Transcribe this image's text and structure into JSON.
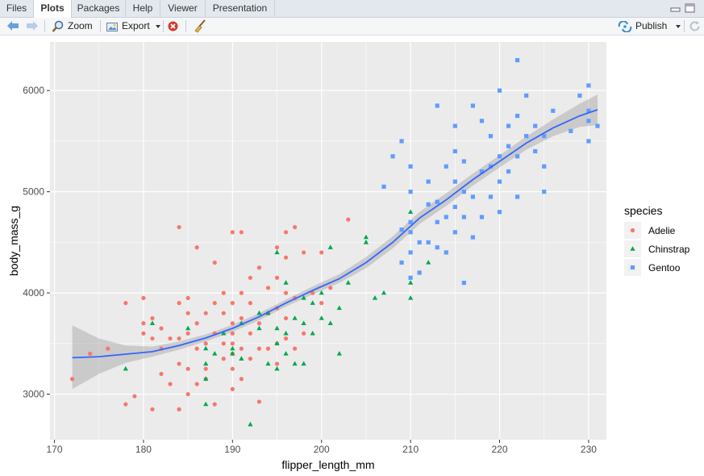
{
  "tabs": [
    {
      "label": "Files"
    },
    {
      "label": "Plots"
    },
    {
      "label": "Packages"
    },
    {
      "label": "Help"
    },
    {
      "label": "Viewer"
    },
    {
      "label": "Presentation"
    }
  ],
  "toolbar": {
    "zoom_label": "Zoom",
    "export_label": "Export",
    "publish_label": "Publish"
  },
  "colors": {
    "adelie": "#F8766D",
    "chinstrap": "#00A84F",
    "gentoo": "#619CFF",
    "smooth": "#3366FF",
    "panel": "#EBEBEB"
  },
  "chart_data": {
    "type": "scatter",
    "xlabel": "flipper_length_mm",
    "ylabel": "body_mass_g",
    "xlim": [
      169.5,
      232
    ],
    "ylim": [
      2550,
      6480
    ],
    "xticks": [
      "170",
      "180",
      "190",
      "200",
      "210",
      "220",
      "230"
    ],
    "yticks": [
      "3000",
      "4000",
      "5000",
      "6000"
    ],
    "legend": {
      "title": "species",
      "position": "right",
      "entries": [
        "Adelie",
        "Chinstrap",
        "Gentoo"
      ]
    },
    "series": [
      {
        "name": "Adelie",
        "shape": "circle",
        "points": [
          [
            172,
            3150
          ],
          [
            174,
            3400
          ],
          [
            176,
            3450
          ],
          [
            178,
            3900
          ],
          [
            178,
            2900
          ],
          [
            179,
            2980
          ],
          [
            180,
            3600
          ],
          [
            180,
            3700
          ],
          [
            180,
            3950
          ],
          [
            181,
            3550
          ],
          [
            181,
            3750
          ],
          [
            181,
            2850
          ],
          [
            182,
            3200
          ],
          [
            182,
            3450
          ],
          [
            182,
            3650
          ],
          [
            183,
            3550
          ],
          [
            183,
            3100
          ],
          [
            184,
            3550
          ],
          [
            184,
            3300
          ],
          [
            184,
            3900
          ],
          [
            184,
            4650
          ],
          [
            184,
            2850
          ],
          [
            185,
            3600
          ],
          [
            185,
            3800
          ],
          [
            185,
            3950
          ],
          [
            185,
            3000
          ],
          [
            185,
            3250
          ],
          [
            186,
            3450
          ],
          [
            186,
            3100
          ],
          [
            186,
            4450
          ],
          [
            186,
            3700
          ],
          [
            187,
            3500
          ],
          [
            187,
            3800
          ],
          [
            187,
            3150
          ],
          [
            187,
            3250
          ],
          [
            188,
            3600
          ],
          [
            188,
            3900
          ],
          [
            188,
            4300
          ],
          [
            188,
            2900
          ],
          [
            189,
            3350
          ],
          [
            189,
            3500
          ],
          [
            189,
            3800
          ],
          [
            189,
            4000
          ],
          [
            190,
            3400
          ],
          [
            190,
            3500
          ],
          [
            190,
            3600
          ],
          [
            190,
            3700
          ],
          [
            190,
            3900
          ],
          [
            190,
            4600
          ],
          [
            190,
            3050
          ],
          [
            190,
            3250
          ],
          [
            191,
            3450
          ],
          [
            191,
            3750
          ],
          [
            191,
            4000
          ],
          [
            191,
            4600
          ],
          [
            191,
            3150
          ],
          [
            192,
            3350
          ],
          [
            192,
            3600
          ],
          [
            192,
            3900
          ],
          [
            192,
            4150
          ],
          [
            193,
            3450
          ],
          [
            193,
            3700
          ],
          [
            193,
            4250
          ],
          [
            193,
            2925
          ],
          [
            194,
            3450
          ],
          [
            194,
            3800
          ],
          [
            194,
            4050
          ],
          [
            195,
            3500
          ],
          [
            195,
            3850
          ],
          [
            195,
            4150
          ],
          [
            195,
            4450
          ],
          [
            195,
            3300
          ],
          [
            196,
            3550
          ],
          [
            196,
            3750
          ],
          [
            196,
            4000
          ],
          [
            196,
            4350
          ],
          [
            196,
            4600
          ],
          [
            197,
            3450
          ],
          [
            197,
            3950
          ],
          [
            197,
            4650
          ],
          [
            198,
            3600
          ],
          [
            198,
            4400
          ],
          [
            199,
            4000
          ],
          [
            200,
            3900
          ],
          [
            200,
            4400
          ],
          [
            201,
            4050
          ],
          [
            203,
            4725
          ]
        ]
      },
      {
        "name": "Chinstrap",
        "shape": "triangle",
        "points": [
          [
            178,
            3250
          ],
          [
            181,
            3700
          ],
          [
            185,
            3650
          ],
          [
            187,
            2900
          ],
          [
            187,
            3300
          ],
          [
            187,
            3450
          ],
          [
            187,
            3150
          ],
          [
            188,
            3400
          ],
          [
            189,
            3600
          ],
          [
            190,
            3450
          ],
          [
            190,
            3400
          ],
          [
            191,
            3700
          ],
          [
            191,
            3350
          ],
          [
            192,
            2700
          ],
          [
            193,
            3800
          ],
          [
            193,
            3650
          ],
          [
            194,
            3800
          ],
          [
            194,
            3300
          ],
          [
            195,
            3650
          ],
          [
            195,
            3500
          ],
          [
            195,
            4400
          ],
          [
            195,
            3250
          ],
          [
            196,
            3600
          ],
          [
            196,
            4100
          ],
          [
            196,
            3400
          ],
          [
            197,
            3750
          ],
          [
            197,
            3300
          ],
          [
            198,
            3950
          ],
          [
            198,
            3700
          ],
          [
            198,
            3300
          ],
          [
            199,
            3900
          ],
          [
            199,
            3600
          ],
          [
            200,
            3750
          ],
          [
            200,
            4000
          ],
          [
            201,
            4450
          ],
          [
            201,
            3700
          ],
          [
            202,
            3850
          ],
          [
            202,
            3400
          ],
          [
            203,
            4100
          ],
          [
            205,
            4550
          ],
          [
            205,
            4500
          ],
          [
            206,
            3950
          ],
          [
            207,
            4000
          ],
          [
            210,
            4800
          ],
          [
            210,
            3950
          ],
          [
            210,
            4100
          ],
          [
            212,
            4300
          ]
        ]
      },
      {
        "name": "Gentoo",
        "shape": "square",
        "points": [
          [
            207,
            5050
          ],
          [
            208,
            5350
          ],
          [
            209,
            4300
          ],
          [
            209,
            4625
          ],
          [
            209,
            5500
          ],
          [
            210,
            4400
          ],
          [
            210,
            4600
          ],
          [
            210,
            4700
          ],
          [
            210,
            4150
          ],
          [
            210,
            5000
          ],
          [
            210,
            5250
          ],
          [
            211,
            4200
          ],
          [
            211,
            4500
          ],
          [
            212,
            4500
          ],
          [
            212,
            4875
          ],
          [
            212,
            5100
          ],
          [
            213,
            4450
          ],
          [
            213,
            4700
          ],
          [
            213,
            4900
          ],
          [
            213,
            5850
          ],
          [
            214,
            4400
          ],
          [
            214,
            4750
          ],
          [
            214,
            5250
          ],
          [
            215,
            4600
          ],
          [
            215,
            4850
          ],
          [
            215,
            5100
          ],
          [
            215,
            5400
          ],
          [
            215,
            5650
          ],
          [
            216,
            4750
          ],
          [
            216,
            5000
          ],
          [
            216,
            4100
          ],
          [
            216,
            5300
          ],
          [
            217,
            4550
          ],
          [
            217,
            4950
          ],
          [
            217,
            5850
          ],
          [
            218,
            4750
          ],
          [
            218,
            5200
          ],
          [
            218,
            5700
          ],
          [
            219,
            4950
          ],
          [
            219,
            5250
          ],
          [
            219,
            5550
          ],
          [
            220,
            4800
          ],
          [
            220,
            5100
          ],
          [
            220,
            5350
          ],
          [
            220,
            6000
          ],
          [
            221,
            5200
          ],
          [
            221,
            5450
          ],
          [
            221,
            5650
          ],
          [
            222,
            4950
          ],
          [
            222,
            5350
          ],
          [
            222,
            6300
          ],
          [
            222,
            5750
          ],
          [
            223,
            5550
          ],
          [
            223,
            5950
          ],
          [
            224,
            5400
          ],
          [
            224,
            5650
          ],
          [
            225,
            5000
          ],
          [
            225,
            5250
          ],
          [
            225,
            5550
          ],
          [
            226,
            5800
          ],
          [
            228,
            5600
          ],
          [
            229,
            5950
          ],
          [
            230,
            5500
          ],
          [
            230,
            5700
          ],
          [
            230,
            5800
          ],
          [
            230,
            6050
          ],
          [
            231,
            5650
          ]
        ]
      }
    ],
    "smooth": {
      "fit": [
        [
          172,
          3360
        ],
        [
          175,
          3370
        ],
        [
          178,
          3395
        ],
        [
          181,
          3420
        ],
        [
          184,
          3480
        ],
        [
          187,
          3555
        ],
        [
          190,
          3650
        ],
        [
          193,
          3765
        ],
        [
          196,
          3900
        ],
        [
          199,
          4025
        ],
        [
          202,
          4140
        ],
        [
          205,
          4300
        ],
        [
          208,
          4500
        ],
        [
          211,
          4740
        ],
        [
          214,
          4920
        ],
        [
          217,
          5120
        ],
        [
          220,
          5300
        ],
        [
          223,
          5480
        ],
        [
          226,
          5630
        ],
        [
          229,
          5750
        ],
        [
          231,
          5810
        ]
      ],
      "band": [
        [
          172,
          3050,
          3680
        ],
        [
          175,
          3200,
          3550
        ],
        [
          178,
          3310,
          3480
        ],
        [
          181,
          3370,
          3470
        ],
        [
          184,
          3440,
          3520
        ],
        [
          187,
          3520,
          3590
        ],
        [
          190,
          3615,
          3685
        ],
        [
          193,
          3730,
          3800
        ],
        [
          196,
          3865,
          3935
        ],
        [
          199,
          3985,
          4065
        ],
        [
          202,
          4100,
          4185
        ],
        [
          205,
          4245,
          4355
        ],
        [
          208,
          4440,
          4560
        ],
        [
          211,
          4680,
          4800
        ],
        [
          214,
          4860,
          4985
        ],
        [
          217,
          5060,
          5180
        ],
        [
          220,
          5240,
          5360
        ],
        [
          223,
          5415,
          5545
        ],
        [
          226,
          5550,
          5715
        ],
        [
          229,
          5640,
          5870
        ],
        [
          231,
          5660,
          5960
        ]
      ]
    }
  }
}
